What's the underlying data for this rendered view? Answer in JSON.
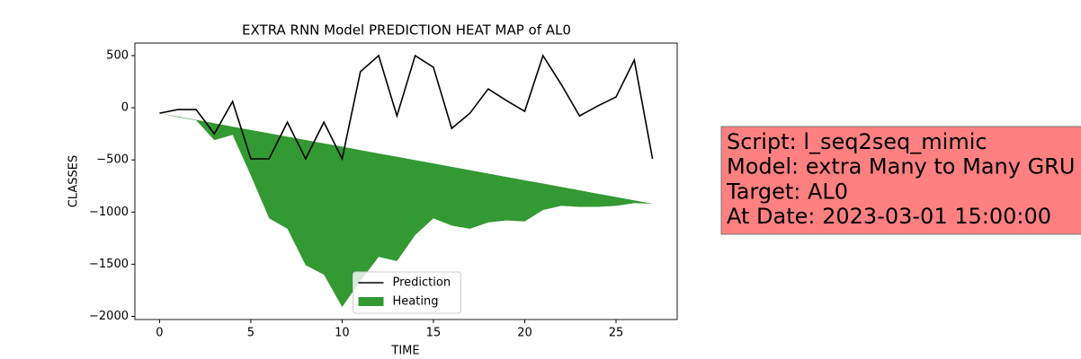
{
  "chart_data": {
    "type": "line",
    "title": "EXTRA RNN Model PREDICTION HEAT MAP of AL0",
    "xlabel": "TIME",
    "ylabel": "CLASSES",
    "x": [
      0,
      1,
      2,
      3,
      4,
      5,
      6,
      7,
      8,
      9,
      10,
      11,
      12,
      13,
      14,
      15,
      16,
      17,
      18,
      19,
      20,
      21,
      22,
      23,
      24,
      25,
      26,
      27
    ],
    "series": [
      {
        "name": "Prediction",
        "kind": "line",
        "color": "#000000",
        "values": [
          -52,
          -17,
          -17,
          -250,
          60,
          -490,
          -490,
          -138,
          -490,
          -138,
          -490,
          345,
          500,
          -78,
          500,
          388,
          -198,
          -52,
          181,
          69,
          -34,
          500,
          224,
          -78,
          17,
          103,
          457,
          -490
        ]
      },
      {
        "name": "Heating",
        "kind": "area",
        "color": "#339933",
        "upper": [
          -52,
          -84,
          -116,
          -148,
          -181,
          -213,
          -245,
          -277,
          -309,
          -341,
          -373,
          -406,
          -438,
          -470,
          -502,
          -534,
          -566,
          -599,
          -631,
          -663,
          -695,
          -727,
          -759,
          -791,
          -824,
          -856,
          -888,
          -920
        ],
        "lower": [
          -52,
          -90,
          -120,
          -310,
          -260,
          -650,
          -1060,
          -1160,
          -1510,
          -1600,
          -1910,
          -1660,
          -1430,
          -1470,
          -1220,
          -1060,
          -1130,
          -1160,
          -1100,
          -1080,
          -1090,
          -980,
          -940,
          -950,
          -950,
          -940,
          -915,
          -920
        ]
      }
    ],
    "xlim": [
      -1.35,
      28.35
    ],
    "ylim": [
      -2030,
      620
    ],
    "xticks": [
      0,
      5,
      10,
      15,
      20,
      25
    ],
    "yticks": [
      {
        "value": -2000,
        "label": "−2000"
      },
      {
        "value": -1500,
        "label": "−1500"
      },
      {
        "value": -1000,
        "label": "−1000"
      },
      {
        "value": -500,
        "label": "−500"
      },
      0,
      500
    ],
    "legend": "lower center",
    "annotation": {
      "lines": [
        "Script: l_seq2seq_mimic",
        "Model: extra Many to Many GRU",
        "Target: AL0",
        "At Date: 2023-03-01 15:00:00"
      ],
      "color": "#ff8080"
    }
  }
}
